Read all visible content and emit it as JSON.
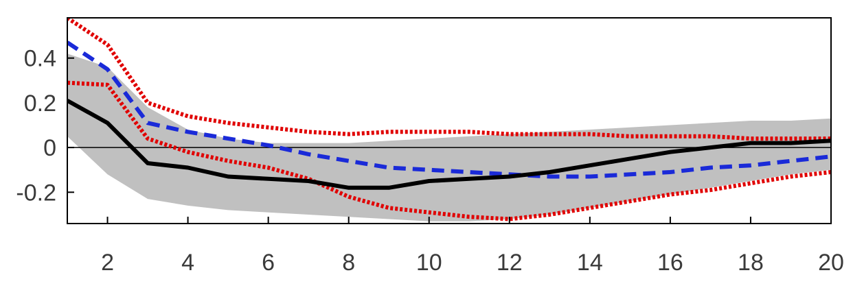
{
  "chart_data": {
    "type": "line",
    "title": "",
    "xlabel": "",
    "ylabel": "",
    "xlim": [
      1,
      20
    ],
    "ylim": [
      -0.34,
      0.58
    ],
    "xticks": [
      2,
      4,
      6,
      8,
      10,
      12,
      14,
      16,
      18,
      20
    ],
    "yticks": [
      -0.2,
      0,
      0.2,
      0.4
    ],
    "xtick_labels": [
      "2",
      "4",
      "6",
      "8",
      "10",
      "12",
      "14",
      "16",
      "18",
      "20"
    ],
    "ytick_labels": [
      "-0.2",
      "0",
      "0.2",
      "0.4"
    ],
    "grid": false,
    "zero_line": true,
    "x": [
      1,
      2,
      3,
      4,
      5,
      6,
      7,
      8,
      9,
      10,
      11,
      12,
      13,
      14,
      15,
      16,
      17,
      18,
      19,
      20
    ],
    "band": {
      "color": "#c0c0c0",
      "upper": [
        0.42,
        0.36,
        0.18,
        0.08,
        0.04,
        0.02,
        0.02,
        0.02,
        0.03,
        0.04,
        0.05,
        0.06,
        0.07,
        0.08,
        0.09,
        0.1,
        0.11,
        0.12,
        0.12,
        0.13
      ],
      "lower": [
        0.05,
        -0.12,
        -0.23,
        -0.26,
        -0.28,
        -0.29,
        -0.3,
        -0.31,
        -0.32,
        -0.33,
        -0.33,
        -0.32,
        -0.3,
        -0.27,
        -0.24,
        -0.21,
        -0.18,
        -0.15,
        -0.12,
        -0.1
      ]
    },
    "series": [
      {
        "style": "solid",
        "color": "#000000",
        "values": [
          0.21,
          0.11,
          -0.07,
          -0.09,
          -0.13,
          -0.14,
          -0.15,
          -0.18,
          -0.18,
          -0.15,
          -0.14,
          -0.13,
          -0.11,
          -0.08,
          -0.05,
          -0.02,
          0.0,
          0.02,
          0.02,
          0.03
        ]
      },
      {
        "style": "dashed",
        "color": "#1a2ad8",
        "values": [
          0.47,
          0.35,
          0.11,
          0.07,
          0.04,
          0.01,
          -0.03,
          -0.06,
          -0.09,
          -0.1,
          -0.11,
          -0.12,
          -0.13,
          -0.13,
          -0.12,
          -0.11,
          -0.09,
          -0.08,
          -0.06,
          -0.04
        ]
      },
      {
        "style": "dotted",
        "color": "#e00000",
        "values": [
          0.58,
          0.46,
          0.2,
          0.14,
          0.11,
          0.09,
          0.07,
          0.06,
          0.07,
          0.07,
          0.07,
          0.06,
          0.06,
          0.06,
          0.05,
          0.05,
          0.05,
          0.04,
          0.04,
          0.04
        ]
      },
      {
        "style": "dotted",
        "color": "#e00000",
        "values": [
          0.29,
          0.28,
          0.04,
          -0.02,
          -0.06,
          -0.09,
          -0.14,
          -0.22,
          -0.27,
          -0.29,
          -0.31,
          -0.32,
          -0.3,
          -0.27,
          -0.24,
          -0.21,
          -0.19,
          -0.16,
          -0.13,
          -0.11
        ]
      }
    ]
  }
}
